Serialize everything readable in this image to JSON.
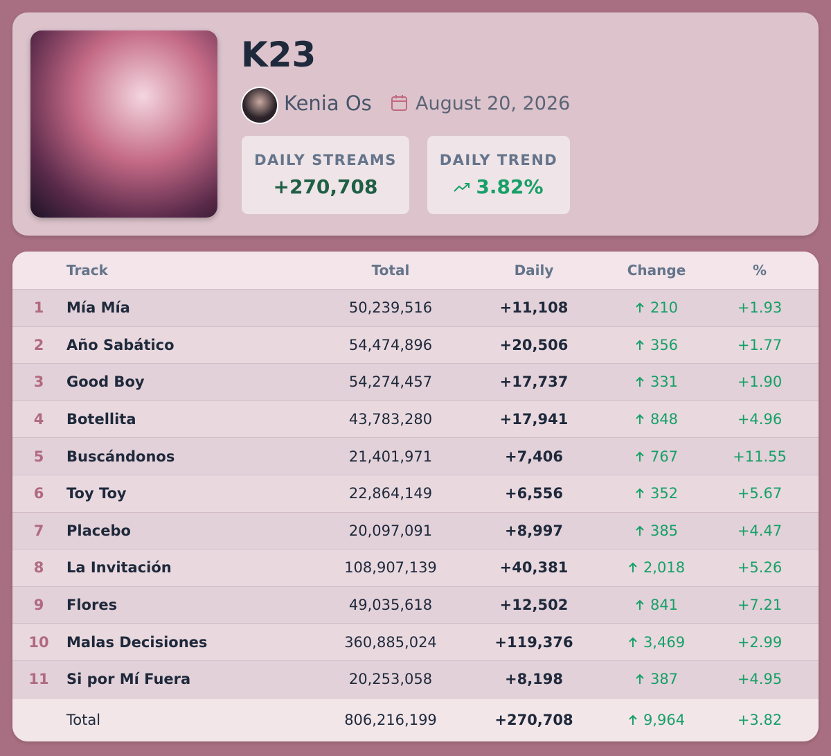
{
  "header": {
    "title": "K23",
    "artist": "Kenia Os",
    "date": "August 20, 2026",
    "stats": [
      {
        "label": "DAILY STREAMS",
        "value": "+270,708"
      },
      {
        "label": "DAILY TREND",
        "value": "3.82%"
      }
    ]
  },
  "table": {
    "columns": [
      "Track",
      "Total",
      "Daily",
      "Change",
      "%"
    ],
    "rows": [
      [
        "1",
        "Mía Mía",
        "50,239,516",
        "+11,108",
        "210",
        "+1.93"
      ],
      [
        "2",
        "Año Sabático",
        "54,474,896",
        "+20,506",
        "356",
        "+1.77"
      ],
      [
        "3",
        "Good Boy",
        "54,274,457",
        "+17,737",
        "331",
        "+1.90"
      ],
      [
        "4",
        "Botellita",
        "43,783,280",
        "+17,941",
        "848",
        "+4.96"
      ],
      [
        "5",
        "Buscándonos",
        "21,401,971",
        "+7,406",
        "767",
        "+11.55"
      ],
      [
        "6",
        "Toy Toy",
        "22,864,149",
        "+6,556",
        "352",
        "+5.67"
      ],
      [
        "7",
        "Placebo",
        "20,097,091",
        "+8,997",
        "385",
        "+4.47"
      ],
      [
        "8",
        "La Invitación",
        "108,907,139",
        "+40,381",
        "2,018",
        "+5.26"
      ],
      [
        "9",
        "Flores",
        "49,035,618",
        "+12,502",
        "841",
        "+7.21"
      ],
      [
        "10",
        "Malas Decisiones",
        "360,885,024",
        "+119,376",
        "3,469",
        "+2.99"
      ],
      [
        "11",
        "Si por Mí Fuera",
        "20,253,058",
        "+8,198",
        "387",
        "+4.95"
      ]
    ],
    "total": [
      "Total",
      "806,216,199",
      "+270,708",
      "9,964",
      "+3.82"
    ]
  }
}
